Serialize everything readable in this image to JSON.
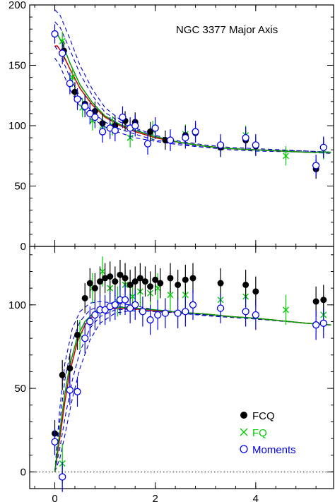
{
  "figure_title": "NGC 3377 Major Axis",
  "legend": [
    {
      "label": "FCQ",
      "color": "#000000",
      "marker": "filled-circle"
    },
    {
      "label": "FQ",
      "color": "#00cc00",
      "marker": "cross"
    },
    {
      "label": "Moments",
      "color": "#0000ee",
      "marker": "open-circle"
    }
  ],
  "colors": {
    "model_red": "#cc0000",
    "model_green": "#009900",
    "dashed_blue": "#0000cc"
  },
  "chart_data": [
    {
      "type": "scatter",
      "panel": "top",
      "title": "NGC 3377 Major Axis",
      "xlabel": "",
      "ylabel": "",
      "xlim": [
        -0.5,
        5.55
      ],
      "ylim": [
        0,
        200
      ],
      "xticks": [
        0,
        2,
        4
      ],
      "yticks": [
        0,
        50,
        100,
        150,
        200
      ],
      "ytick_labels": [
        "0",
        "50",
        "100",
        "150",
        "200"
      ],
      "grid": false,
      "series": [
        {
          "name": "FCQ",
          "x": [
            0.18,
            0.4,
            0.6,
            0.8,
            0.95,
            1.2,
            1.4,
            1.6,
            1.9,
            2.2,
            2.6,
            2.8,
            3.3,
            3.8,
            4.0,
            5.2,
            5.35
          ],
          "y": [
            162,
            128,
            118,
            112,
            102,
            100,
            104,
            103,
            95,
            88,
            92,
            94,
            82,
            88,
            83,
            64,
            82
          ],
          "err": [
            8,
            8,
            8,
            8,
            8,
            8,
            8,
            8,
            8,
            8,
            8,
            8,
            8,
            8,
            8,
            8,
            8
          ]
        },
        {
          "name": "FQ",
          "x": [
            0.15,
            0.35,
            0.55,
            0.75,
            0.95,
            1.15,
            1.5,
            1.95,
            2.6,
            3.3,
            3.8,
            4.6,
            5.35
          ],
          "y": [
            170,
            140,
            115,
            104,
            100,
            100,
            90,
            96,
            93,
            82,
            92,
            75,
            80
          ],
          "err": [
            8,
            8,
            8,
            8,
            8,
            8,
            8,
            8,
            8,
            8,
            8,
            8,
            8
          ]
        },
        {
          "name": "Moments",
          "x": [
            0,
            0.15,
            0.3,
            0.45,
            0.6,
            0.7,
            0.8,
            0.95,
            1.1,
            1.2,
            1.35,
            1.5,
            1.6,
            1.85,
            2.0,
            2.3,
            2.6,
            2.8,
            3.3,
            3.8,
            4.0,
            5.2,
            5.35
          ],
          "y": [
            176,
            160,
            135,
            122,
            116,
            110,
            107,
            95,
            98,
            96,
            107,
            98,
            100,
            85,
            98,
            88,
            90,
            95,
            84,
            90,
            84,
            67,
            82
          ],
          "err": [
            8,
            9,
            9,
            9,
            9,
            9,
            9,
            9,
            9,
            9,
            9,
            9,
            9,
            9,
            9,
            9,
            9,
            9,
            9,
            9,
            9,
            9,
            9
          ]
        }
      ],
      "model_curves": [
        {
          "color": "red",
          "x": [
            0,
            0.05,
            0.15,
            0.3,
            0.5,
            0.75,
            1.0,
            1.3,
            1.6,
            2.0,
            2.5,
            3.0,
            3.5,
            4.0,
            4.5,
            5.0,
            5.5
          ],
          "y": [
            166,
            166,
            160,
            147,
            131,
            117,
            107,
            100,
            95,
            90,
            86,
            83,
            81,
            80,
            79,
            78,
            78
          ]
        },
        {
          "color": "green",
          "x": [
            0,
            0.05,
            0.15,
            0.3,
            0.5,
            0.75,
            1.0,
            1.3,
            1.6,
            2.0,
            2.5,
            3.0,
            3.5,
            4.0,
            4.5,
            5.0,
            5.5
          ],
          "y": [
            178,
            176,
            168,
            152,
            134,
            119,
            108,
            101,
            96,
            91,
            86,
            83,
            81,
            80,
            79,
            78,
            78
          ]
        }
      ],
      "dashed_curves": [
        {
          "x": [
            0,
            0.1,
            0.3,
            0.5,
            0.75,
            1.0,
            1.3,
            1.6,
            2.0,
            2.5,
            3.0,
            3.5,
            4.0,
            5.0,
            5.5
          ],
          "y": [
            196,
            192,
            172,
            150,
            130,
            115,
            105,
            98,
            92,
            87,
            84,
            82,
            81,
            79,
            78
          ]
        },
        {
          "x": [
            0,
            0.1,
            0.3,
            0.5,
            0.75,
            1.0,
            1.3,
            1.6,
            2.0,
            2.5,
            3.0,
            3.5,
            4.0,
            5.0,
            5.5
          ],
          "y": [
            186,
            182,
            163,
            143,
            125,
            111,
            103,
            97,
            91,
            86,
            83,
            81,
            80,
            79,
            78
          ]
        },
        {
          "x": [
            0,
            0.1,
            0.3,
            0.5,
            0.75,
            1.0,
            1.3,
            1.6,
            2.0,
            2.5,
            3.0,
            3.5,
            4.0,
            5.0,
            5.5
          ],
          "y": [
            166,
            160,
            140,
            124,
            111,
            103,
            97,
            93,
            88,
            85,
            82,
            81,
            80,
            78,
            78
          ]
        },
        {
          "x": [
            0,
            0.1,
            0.3,
            0.5,
            0.75,
            1.0,
            1.3,
            1.6,
            2.0,
            2.5,
            3.0,
            3.5,
            4.0,
            5.0,
            5.5
          ],
          "y": [
            156,
            150,
            130,
            116,
            106,
            99,
            94,
            90,
            87,
            84,
            82,
            80,
            79,
            78,
            77
          ]
        }
      ]
    },
    {
      "type": "scatter",
      "panel": "bottom",
      "xlabel": "",
      "ylabel": "",
      "xlim": [
        -0.5,
        5.55
      ],
      "ylim": [
        -10,
        135
      ],
      "xticks": [
        0,
        2,
        4
      ],
      "xtick_labels": [
        "0",
        "2",
        "4"
      ],
      "yticks": [
        0,
        50,
        100
      ],
      "ytick_labels": [
        "0",
        "50",
        "100"
      ],
      "reference_line": {
        "y": 0,
        "style": "dotted"
      },
      "grid": false,
      "series": [
        {
          "name": "FCQ",
          "x": [
            0,
            0.15,
            0.3,
            0.45,
            0.6,
            0.7,
            0.8,
            0.9,
            1.0,
            1.1,
            1.2,
            1.3,
            1.4,
            1.5,
            1.6,
            1.7,
            1.8,
            1.9,
            2.0,
            2.1,
            2.3,
            2.45,
            2.6,
            2.75,
            3.3,
            3.8,
            4.0,
            5.2,
            5.35
          ],
          "y": [
            23,
            58,
            62,
            82,
            104,
            113,
            110,
            114,
            116,
            117,
            114,
            118,
            116,
            112,
            114,
            116,
            114,
            111,
            115,
            113,
            116,
            112,
            115,
            116,
            113,
            112,
            108,
            102,
            103
          ],
          "err": [
            8,
            9,
            9,
            9,
            9,
            9,
            9,
            9,
            9,
            9,
            9,
            9,
            9,
            9,
            9,
            9,
            9,
            9,
            9,
            9,
            9,
            9,
            9,
            9,
            9,
            9,
            9,
            9,
            9
          ]
        },
        {
          "name": "FQ",
          "x": [
            0.15,
            0.5,
            0.75,
            0.95,
            1.1,
            1.25,
            1.4,
            1.55,
            1.7,
            1.9,
            2.05,
            2.3,
            2.6,
            3.3,
            3.8,
            4.6,
            5.35
          ],
          "y": [
            5,
            82,
            110,
            120,
            110,
            102,
            112,
            105,
            108,
            107,
            110,
            106,
            106,
            103,
            105,
            97,
            94
          ],
          "err": [
            12,
            9,
            9,
            9,
            9,
            9,
            9,
            9,
            9,
            9,
            9,
            9,
            9,
            9,
            9,
            9,
            9
          ]
        },
        {
          "name": "Moments",
          "x": [
            0,
            0.15,
            0.3,
            0.45,
            0.6,
            0.7,
            0.8,
            0.9,
            1.0,
            1.1,
            1.2,
            1.3,
            1.4,
            1.5,
            1.6,
            1.75,
            1.9,
            2.05,
            2.2,
            2.45,
            2.6,
            2.75,
            3.3,
            3.8,
            4.0,
            5.2,
            5.35
          ],
          "y": [
            18,
            -3,
            49,
            48,
            80,
            90,
            94,
            97,
            97,
            99,
            100,
            103,
            103,
            98,
            100,
            96,
            91,
            94,
            95,
            95,
            96,
            100,
            98,
            96,
            94,
            88,
            89
          ],
          "err": [
            8,
            9,
            9,
            9,
            9,
            9,
            9,
            9,
            9,
            9,
            9,
            9,
            9,
            9,
            9,
            9,
            9,
            9,
            9,
            9,
            9,
            9,
            9,
            9,
            9,
            9,
            9
          ]
        }
      ],
      "model_curves": [
        {
          "color": "red",
          "x": [
            0,
            0.1,
            0.2,
            0.3,
            0.45,
            0.6,
            0.8,
            1.0,
            1.3,
            1.6,
            2.0,
            2.5,
            3.0,
            3.5,
            4.0,
            4.5,
            5.0,
            5.5
          ],
          "y": [
            0,
            20,
            42,
            60,
            78,
            88,
            95,
            97.5,
            98,
            97.5,
            96.5,
            95.5,
            94.5,
            93,
            92,
            90.5,
            89,
            88
          ]
        },
        {
          "color": "green",
          "x": [
            0,
            0.1,
            0.2,
            0.3,
            0.45,
            0.6,
            0.8,
            1.0,
            1.3,
            1.6,
            2.0,
            2.5,
            3.0,
            3.5,
            4.0,
            4.5,
            5.0,
            5.5
          ],
          "y": [
            0,
            24,
            47,
            64,
            81,
            90,
            96,
            98.5,
            98.5,
            98,
            97,
            95.5,
            94.5,
            93,
            92,
            90.5,
            89,
            88
          ]
        }
      ],
      "dashed_curves": [
        {
          "x": [
            0,
            0.1,
            0.2,
            0.35,
            0.5,
            0.7,
            0.9,
            1.2,
            1.5,
            2.0,
            2.5,
            3.0,
            4.0,
            5.0,
            5.5
          ],
          "y": [
            0,
            38,
            65,
            86,
            96,
            101,
            102,
            101,
            100,
            97,
            96,
            94,
            92,
            89,
            88
          ]
        },
        {
          "x": [
            0,
            0.1,
            0.2,
            0.35,
            0.5,
            0.7,
            0.9,
            1.2,
            1.5,
            2.0,
            2.5,
            3.0,
            4.0,
            5.0,
            5.5
          ],
          "y": [
            0,
            30,
            55,
            78,
            90,
            97,
            99,
            99,
            98.5,
            97,
            95.5,
            94,
            92,
            89,
            88
          ]
        },
        {
          "x": [
            0,
            0.1,
            0.2,
            0.35,
            0.5,
            0.7,
            0.9,
            1.2,
            1.5,
            2.0,
            2.5,
            3.0,
            4.0,
            5.0,
            5.5
          ],
          "y": [
            0,
            14,
            32,
            55,
            72,
            86,
            93,
            97,
            97.5,
            96.5,
            95,
            94,
            92,
            89,
            88
          ]
        },
        {
          "x": [
            0,
            0.1,
            0.2,
            0.35,
            0.5,
            0.7,
            0.9,
            1.2,
            1.5,
            2.0,
            2.5,
            3.0,
            4.0,
            5.0,
            5.5
          ],
          "y": [
            0,
            8,
            22,
            44,
            62,
            79,
            89,
            95,
            96.5,
            96,
            95,
            93.5,
            91.5,
            89,
            88
          ]
        }
      ]
    }
  ]
}
